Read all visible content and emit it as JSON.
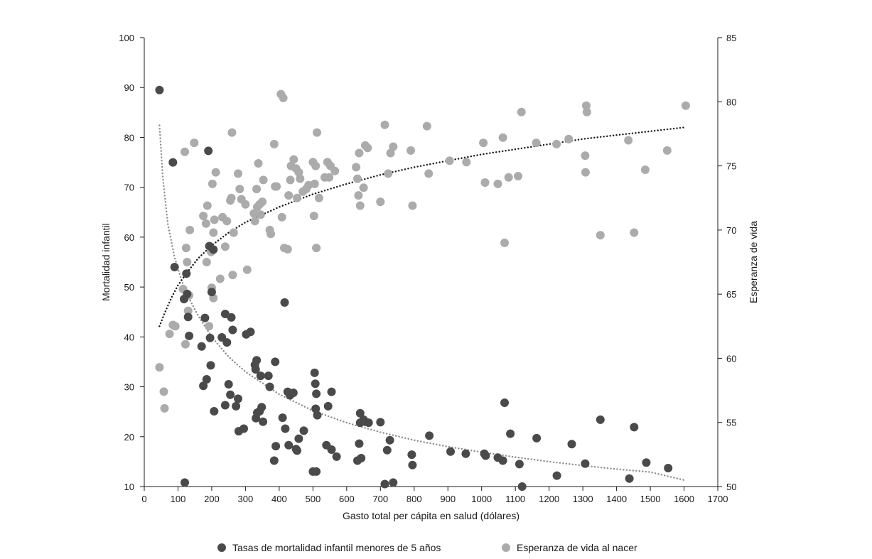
{
  "chart_data": {
    "type": "scatter",
    "title": "",
    "xlabel": "Gasto total per cápita en salud (dólares)",
    "ylabel_left": "Mortalidad infantil",
    "ylabel_right": "Esperanza de vida",
    "xlim": [
      0,
      1700
    ],
    "ylim_left": [
      10,
      100
    ],
    "ylim_right": [
      50,
      85
    ],
    "x_ticks": [
      0,
      100,
      200,
      300,
      400,
      500,
      600,
      700,
      800,
      900,
      1000,
      1100,
      1200,
      1300,
      1400,
      1500,
      1600,
      1700
    ],
    "y_ticks_left": [
      10,
      20,
      30,
      40,
      50,
      60,
      70,
      80,
      90,
      100
    ],
    "y_ticks_right": [
      50,
      55,
      60,
      65,
      70,
      75,
      80,
      85
    ],
    "grid": false,
    "legend_position": "bottom",
    "series": [
      {
        "name": "Tasas de mortalidad infantil menores de 5 años",
        "axis": "left",
        "color": "#4a4a4a",
        "trend_color": "#8c8c8c",
        "points": [
          [
            45,
            89.5
          ],
          [
            85,
            75
          ],
          [
            190,
            77.3
          ],
          [
            90,
            54
          ],
          [
            125,
            52.7
          ],
          [
            118,
            47.6
          ],
          [
            127,
            48.6
          ],
          [
            130,
            44
          ],
          [
            133,
            40.2
          ],
          [
            120,
            10.8
          ],
          [
            170,
            38.1
          ],
          [
            180,
            43.8
          ],
          [
            185,
            31.5
          ],
          [
            175,
            30.2
          ],
          [
            193,
            58.2
          ],
          [
            195,
            39.8
          ],
          [
            200,
            49
          ],
          [
            205,
            57.5
          ],
          [
            197,
            34.3
          ],
          [
            207,
            25.1
          ],
          [
            230,
            39.9
          ],
          [
            240,
            44.6
          ],
          [
            245,
            38.9
          ],
          [
            250,
            30.5
          ],
          [
            255,
            28.4
          ],
          [
            258,
            43.9
          ],
          [
            262,
            41.4
          ],
          [
            240,
            26.3
          ],
          [
            272,
            26.1
          ],
          [
            278,
            27.6
          ],
          [
            280,
            21.1
          ],
          [
            295,
            21.6
          ],
          [
            302,
            40.5
          ],
          [
            315,
            41
          ],
          [
            328,
            34.4
          ],
          [
            330,
            33.5
          ],
          [
            333,
            35.3
          ],
          [
            331,
            23.7
          ],
          [
            335,
            24.8
          ],
          [
            342,
            25.1
          ],
          [
            345,
            32.2
          ],
          [
            348,
            25.9
          ],
          [
            352,
            23
          ],
          [
            368,
            32.2
          ],
          [
            372,
            30
          ],
          [
            385,
            15.2
          ],
          [
            388,
            35
          ],
          [
            390,
            18.1
          ],
          [
            410,
            23.8
          ],
          [
            416,
            46.9
          ],
          [
            418,
            21.6
          ],
          [
            425,
            29
          ],
          [
            428,
            18.3
          ],
          [
            432,
            28.3
          ],
          [
            442,
            28.8
          ],
          [
            450,
            17.5
          ],
          [
            453,
            17.2
          ],
          [
            458,
            19.6
          ],
          [
            473,
            21.2
          ],
          [
            505,
            32.8
          ],
          [
            507,
            30.6
          ],
          [
            508,
            25.6
          ],
          [
            510,
            28.6
          ],
          [
            513,
            24.3
          ],
          [
            500,
            13
          ],
          [
            510,
            13
          ],
          [
            540,
            18.3
          ],
          [
            545,
            26.1
          ],
          [
            555,
            29
          ],
          [
            555,
            17.4
          ],
          [
            570,
            16
          ],
          [
            632,
            15.2
          ],
          [
            637,
            18.6
          ],
          [
            640,
            24.7
          ],
          [
            640,
            22.8
          ],
          [
            643,
            15.7
          ],
          [
            650,
            23.4
          ],
          [
            655,
            23
          ],
          [
            665,
            22.8
          ],
          [
            700,
            22.9
          ],
          [
            713,
            10.5
          ],
          [
            720,
            17.3
          ],
          [
            728,
            19.3
          ],
          [
            738,
            10.8
          ],
          [
            793,
            16.4
          ],
          [
            795,
            14.3
          ],
          [
            845,
            20.2
          ],
          [
            908,
            17
          ],
          [
            953,
            16.6
          ],
          [
            1008,
            16.6
          ],
          [
            1012,
            16.2
          ],
          [
            1048,
            15.8
          ],
          [
            1063,
            15.2
          ],
          [
            1068,
            26.8
          ],
          [
            1085,
            20.6
          ],
          [
            1112,
            14.5
          ],
          [
            1120,
            10
          ],
          [
            1163,
            19.7
          ],
          [
            1223,
            12.2
          ],
          [
            1267,
            18.5
          ],
          [
            1307,
            14.6
          ],
          [
            1352,
            23.4
          ],
          [
            1438,
            11.6
          ],
          [
            1452,
            21.9
          ],
          [
            1488,
            14.8
          ],
          [
            1553,
            13.7
          ]
        ],
        "trend": [
          [
            45,
            82.4
          ],
          [
            55,
            71.9
          ],
          [
            70,
            62.6
          ],
          [
            90,
            55.9
          ],
          [
            110,
            51.5
          ],
          [
            130,
            48.1
          ],
          [
            160,
            44.2
          ],
          [
            200,
            40
          ],
          [
            250,
            36
          ],
          [
            300,
            33
          ],
          [
            400,
            28.5
          ],
          [
            500,
            25.2
          ],
          [
            600,
            22.8
          ],
          [
            700,
            20.9
          ],
          [
            800,
            19.3
          ],
          [
            900,
            18
          ],
          [
            1000,
            16.9
          ],
          [
            1100,
            15.9
          ],
          [
            1200,
            15
          ],
          [
            1300,
            14.2
          ],
          [
            1400,
            13.5
          ],
          [
            1500,
            12.9
          ],
          [
            1600,
            11.3
          ]
        ]
      },
      {
        "name": "Esperanza de vida al nacer",
        "axis": "right",
        "color": "#ababab",
        "trend_color": "#1a1a1a",
        "points": [
          [
            45,
            59.3
          ],
          [
            58,
            57.4
          ],
          [
            60,
            56.1
          ],
          [
            75,
            61.9
          ],
          [
            85,
            62.6
          ],
          [
            92,
            62.5
          ],
          [
            115,
            65.4
          ],
          [
            120,
            76.1
          ],
          [
            122,
            61.1
          ],
          [
            124,
            68.6
          ],
          [
            127,
            67.5
          ],
          [
            130,
            63.7
          ],
          [
            133,
            64.9
          ],
          [
            135,
            70
          ],
          [
            148,
            76.8
          ],
          [
            175,
            71.1
          ],
          [
            183,
            70.5
          ],
          [
            185,
            67.5
          ],
          [
            187,
            71.9
          ],
          [
            192,
            62.5
          ],
          [
            198,
            68.3
          ],
          [
            200,
            65.5
          ],
          [
            202,
            73.6
          ],
          [
            205,
            69.8
          ],
          [
            205,
            64.7
          ],
          [
            208,
            70.8
          ],
          [
            212,
            74.5
          ],
          [
            225,
            66.2
          ],
          [
            232,
            71
          ],
          [
            240,
            68.7
          ],
          [
            245,
            70.7
          ],
          [
            255,
            72.3
          ],
          [
            258,
            72.5
          ],
          [
            260,
            77.6
          ],
          [
            262,
            66.5
          ],
          [
            265,
            69.8
          ],
          [
            278,
            74.4
          ],
          [
            283,
            73.2
          ],
          [
            288,
            72.4
          ],
          [
            300,
            72
          ],
          [
            305,
            66.9
          ],
          [
            325,
            71.3
          ],
          [
            328,
            70.7
          ],
          [
            333,
            73.2
          ],
          [
            335,
            71.8
          ],
          [
            338,
            75.2
          ],
          [
            342,
            72
          ],
          [
            345,
            71.2
          ],
          [
            350,
            72.2
          ],
          [
            353,
            73.9
          ],
          [
            372,
            70
          ],
          [
            375,
            69.7
          ],
          [
            385,
            76.7
          ],
          [
            388,
            73.4
          ],
          [
            392,
            73.4
          ],
          [
            405,
            80.6
          ],
          [
            408,
            71
          ],
          [
            412,
            80.3
          ],
          [
            415,
            68.6
          ],
          [
            425,
            68.5
          ],
          [
            428,
            72.7
          ],
          [
            433,
            73.9
          ],
          [
            435,
            75
          ],
          [
            443,
            75.5
          ],
          [
            450,
            74.8
          ],
          [
            453,
            72.5
          ],
          [
            458,
            74.5
          ],
          [
            462,
            74
          ],
          [
            470,
            73
          ],
          [
            480,
            73.2
          ],
          [
            487,
            73.5
          ],
          [
            500,
            75.3
          ],
          [
            503,
            71.1
          ],
          [
            505,
            73.6
          ],
          [
            508,
            75
          ],
          [
            510,
            68.6
          ],
          [
            512,
            77.6
          ],
          [
            518,
            72.5
          ],
          [
            535,
            74.1
          ],
          [
            543,
            75.3
          ],
          [
            548,
            74.1
          ],
          [
            552,
            75
          ],
          [
            565,
            74.6
          ],
          [
            628,
            74.9
          ],
          [
            632,
            74
          ],
          [
            635,
            72.7
          ],
          [
            637,
            76
          ],
          [
            640,
            71.9
          ],
          [
            650,
            73.3
          ],
          [
            655,
            76.6
          ],
          [
            662,
            76.4
          ],
          [
            700,
            72.2
          ],
          [
            713,
            78.2
          ],
          [
            723,
            74.4
          ],
          [
            730,
            76
          ],
          [
            738,
            76.5
          ],
          [
            790,
            76.2
          ],
          [
            795,
            71.9
          ],
          [
            838,
            78.1
          ],
          [
            843,
            74.4
          ],
          [
            905,
            75.4
          ],
          [
            955,
            75.3
          ],
          [
            1005,
            76.8
          ],
          [
            1010,
            73.7
          ],
          [
            1048,
            73.6
          ],
          [
            1063,
            77.2
          ],
          [
            1068,
            69
          ],
          [
            1080,
            74.1
          ],
          [
            1108,
            74.2
          ],
          [
            1118,
            79.2
          ],
          [
            1162,
            76.8
          ],
          [
            1222,
            76.7
          ],
          [
            1258,
            77.1
          ],
          [
            1307,
            75.8
          ],
          [
            1308,
            74.5
          ],
          [
            1310,
            79.7
          ],
          [
            1312,
            79.2
          ],
          [
            1352,
            69.6
          ],
          [
            1435,
            77
          ],
          [
            1452,
            69.8
          ],
          [
            1485,
            74.7
          ],
          [
            1550,
            76.2
          ],
          [
            1605,
            79.7
          ]
        ],
        "trend": [
          [
            45,
            62.5
          ],
          [
            60,
            63.5
          ],
          [
            80,
            64.7
          ],
          [
            100,
            65.7
          ],
          [
            130,
            66.8
          ],
          [
            160,
            67.8
          ],
          [
            200,
            68.8
          ],
          [
            250,
            69.8
          ],
          [
            300,
            70.6
          ],
          [
            400,
            71.8
          ],
          [
            500,
            72.8
          ],
          [
            600,
            73.6
          ],
          [
            700,
            74.3
          ],
          [
            800,
            74.9
          ],
          [
            900,
            75.4
          ],
          [
            1000,
            75.9
          ],
          [
            1100,
            76.3
          ],
          [
            1200,
            76.7
          ],
          [
            1300,
            77.1
          ],
          [
            1400,
            77.4
          ],
          [
            1500,
            77.7
          ],
          [
            1600,
            78
          ]
        ]
      }
    ]
  }
}
